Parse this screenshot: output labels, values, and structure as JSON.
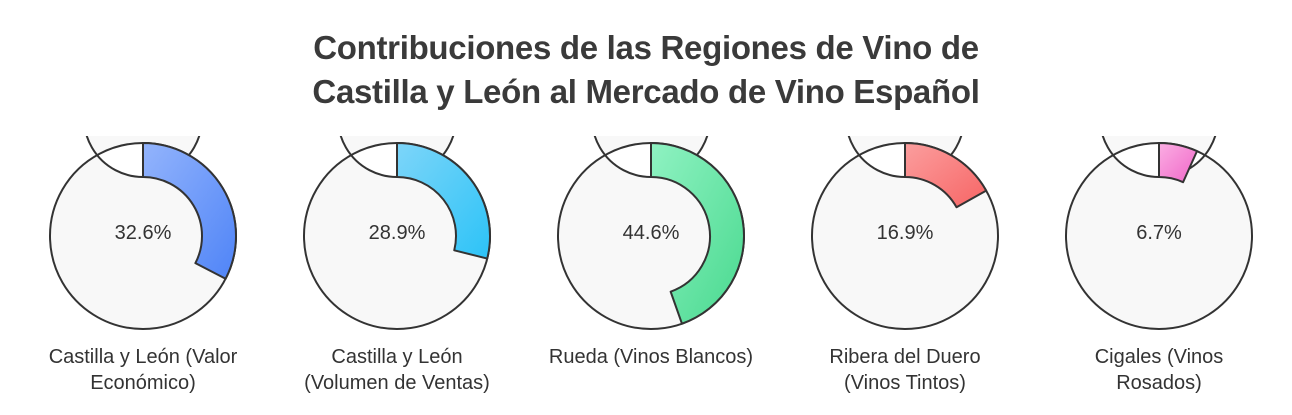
{
  "title": [
    "Contribuciones de las Regiones de Vino de",
    "Castilla y León al Mercado de Vino Español"
  ],
  "chart_data": [
    {
      "type": "pie",
      "name": [
        "Castilla y León (Valor",
        "Económico)"
      ],
      "value": 32.6,
      "value_label": "32.6%",
      "color_start": "#93b4fc",
      "color_end": "#4f84f7"
    },
    {
      "type": "pie",
      "name": [
        "Castilla y León",
        "(Volumen de Ventas)"
      ],
      "value": 28.9,
      "value_label": "28.9%",
      "color_start": "#7dd5f9",
      "color_end": "#2cc3f7"
    },
    {
      "type": "pie",
      "name": [
        "Rueda (Vinos Blancos)"
      ],
      "value": 44.6,
      "value_label": "44.6%",
      "color_start": "#8ff2c2",
      "color_end": "#49d98f"
    },
    {
      "type": "pie",
      "name": [
        "Ribera del Duero",
        "(Vinos Tintos)"
      ],
      "value": 16.9,
      "value_label": "16.9%",
      "color_start": "#fb9e9e",
      "color_end": "#f76565"
    },
    {
      "type": "pie",
      "name": [
        "Cigales (Vinos",
        "Rosados)"
      ],
      "value": 6.7,
      "value_label": "6.7%",
      "color_start": "#fbaee3",
      "color_end": "#f066c8"
    }
  ],
  "colors": {
    "track": "#f8f8f8",
    "stroke": "#333333"
  }
}
